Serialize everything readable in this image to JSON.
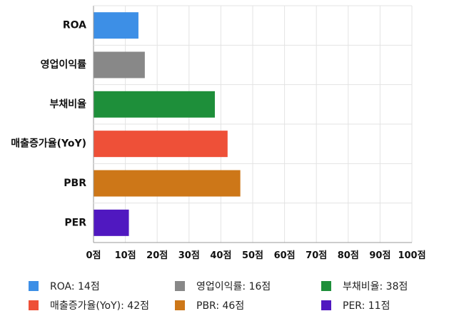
{
  "chart_data": {
    "type": "bar",
    "orientation": "horizontal",
    "categories": [
      "ROA",
      "영업이익률",
      "부채비율",
      "매출증가율(YoY)",
      "PBR",
      "PER"
    ],
    "values": [
      14,
      16,
      38,
      42,
      46,
      11
    ],
    "colors": [
      "#3d8fe6",
      "#888888",
      "#1e8f3a",
      "#ee5038",
      "#cd7718",
      "#5018c0"
    ],
    "xlim": [
      0,
      100
    ],
    "x_ticks": [
      0,
      10,
      20,
      30,
      40,
      50,
      60,
      70,
      80,
      90,
      100
    ],
    "tick_labels": [
      "0점",
      "10점",
      "20점",
      "30점",
      "40점",
      "50점",
      "60점",
      "70점",
      "80점",
      "90점",
      "100점"
    ],
    "grid": true,
    "legend_position": "bottom",
    "legend": [
      {
        "label": "ROA: 14점",
        "color": "#3d8fe6"
      },
      {
        "label": "영업이익률: 16점",
        "color": "#888888"
      },
      {
        "label": "부채비율: 38점",
        "color": "#1e8f3a"
      },
      {
        "label": "매출증가율(YoY): 42점",
        "color": "#ee5038"
      },
      {
        "label": "PBR: 46점",
        "color": "#cd7718"
      },
      {
        "label": "PER: 11점",
        "color": "#5018c0"
      }
    ]
  }
}
